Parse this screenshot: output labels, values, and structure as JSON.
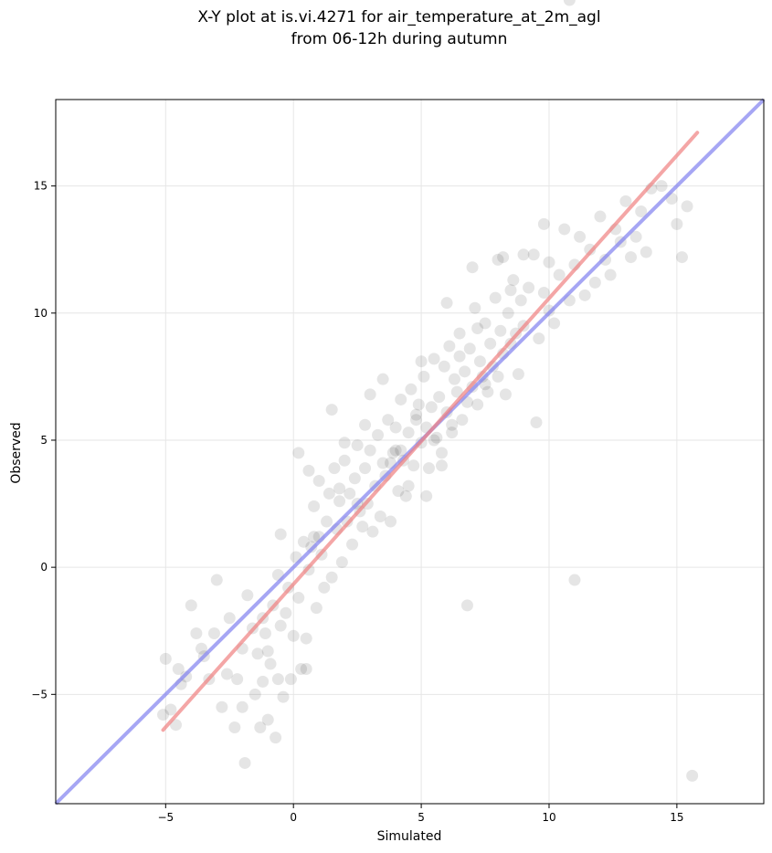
{
  "chart_data": {
    "type": "scatter",
    "title_lines": [
      "X-Y plot at is.vi.4271 for air_temperature_at_2m_agl",
      "from 06-12h during autumn"
    ],
    "xlabel": "Simulated",
    "ylabel": "Observed",
    "xlim": [
      -9.3,
      18.4
    ],
    "ylim": [
      -9.3,
      18.4
    ],
    "xticks": [
      -5,
      0,
      5,
      10,
      15
    ],
    "yticks": [
      -5,
      0,
      5,
      10,
      15
    ],
    "xtick_labels": [
      "−5",
      "0",
      "5",
      "10",
      "15"
    ],
    "ytick_labels": [
      "−5",
      "0",
      "5",
      "10",
      "15"
    ],
    "grid": true,
    "point_color": "#000000",
    "point_opacity": 0.1,
    "points_x": [
      -5.1,
      -5.0,
      -4.8,
      -4.6,
      -4.5,
      -4.4,
      -4.2,
      -4.0,
      -3.8,
      -3.6,
      -3.5,
      -3.3,
      -3.1,
      -3.0,
      -2.8,
      -2.6,
      -2.5,
      -2.3,
      -2.2,
      -2.0,
      -1.9,
      -1.8,
      -1.6,
      -1.5,
      -1.4,
      -1.3,
      -1.2,
      -1.1,
      -1.0,
      -0.9,
      -0.8,
      -0.7,
      -0.6,
      -0.5,
      -0.4,
      -0.3,
      -0.2,
      -0.1,
      0.0,
      0.1,
      0.2,
      0.3,
      0.4,
      0.5,
      0.6,
      0.7,
      0.8,
      0.9,
      1.0,
      1.1,
      1.2,
      1.3,
      1.4,
      1.5,
      1.6,
      1.7,
      1.8,
      1.9,
      2.0,
      2.1,
      2.2,
      2.3,
      2.4,
      2.5,
      2.6,
      2.7,
      2.8,
      2.9,
      3.0,
      3.1,
      3.2,
      3.3,
      3.4,
      3.5,
      3.6,
      3.7,
      3.8,
      3.9,
      4.0,
      4.1,
      4.2,
      4.3,
      4.4,
      4.5,
      4.6,
      4.7,
      4.8,
      4.9,
      5.0,
      5.1,
      5.2,
      5.3,
      5.4,
      5.5,
      5.6,
      5.7,
      5.8,
      5.9,
      6.0,
      6.1,
      6.2,
      6.3,
      6.4,
      6.5,
      6.6,
      6.7,
      6.8,
      6.9,
      7.0,
      7.1,
      7.2,
      7.3,
      7.4,
      7.5,
      7.6,
      7.7,
      7.8,
      7.9,
      8.0,
      8.1,
      8.2,
      8.3,
      8.4,
      8.5,
      8.6,
      8.7,
      8.8,
      8.9,
      9.0,
      9.2,
      9.4,
      9.6,
      9.8,
      10.0,
      10.2,
      10.4,
      10.6,
      10.8,
      11.0,
      11.2,
      11.4,
      11.6,
      11.8,
      12.0,
      12.2,
      12.4,
      12.6,
      12.8,
      13.0,
      13.2,
      13.4,
      13.6,
      13.8,
      14.0,
      14.4,
      14.8,
      15.0,
      15.2,
      15.4,
      15.6,
      -1.0,
      -0.5,
      0.5,
      1.0,
      2.0,
      3.0,
      4.0,
      5.0,
      6.0,
      7.0,
      8.0,
      9.0,
      10.0,
      11.0,
      -2.0,
      -1.2,
      0.2,
      1.5,
      2.5,
      3.5,
      4.5,
      5.5,
      6.5,
      7.5,
      8.5,
      9.5,
      0.8,
      1.8,
      2.8,
      3.8,
      4.8,
      5.8,
      6.8,
      -0.6,
      0.6,
      4.2,
      5.2,
      6.2,
      7.2,
      8.2,
      9.8,
      10.8
    ],
    "points_y": [
      -5.8,
      -3.6,
      -5.6,
      -6.2,
      -4.0,
      -4.6,
      -4.3,
      -1.5,
      -2.6,
      -3.2,
      -3.5,
      -4.4,
      -2.6,
      -0.5,
      -5.5,
      -4.2,
      -2.0,
      -6.3,
      -4.4,
      -3.2,
      -7.7,
      -1.1,
      -2.4,
      -5.0,
      -3.4,
      -6.3,
      -4.5,
      -2.6,
      -6.0,
      -3.8,
      -1.5,
      -6.7,
      -0.3,
      -2.3,
      -5.1,
      -1.8,
      -0.8,
      -4.4,
      -2.7,
      0.4,
      -1.2,
      -4.0,
      1.0,
      -2.8,
      -0.1,
      0.8,
      2.4,
      -1.6,
      3.4,
      0.5,
      -0.8,
      1.8,
      2.9,
      -0.4,
      3.9,
      1.5,
      2.6,
      0.2,
      4.2,
      1.8,
      2.9,
      0.9,
      3.5,
      4.8,
      2.2,
      1.6,
      3.9,
      2.5,
      4.6,
      1.4,
      3.2,
      5.2,
      2.0,
      4.1,
      3.6,
      5.8,
      1.8,
      4.5,
      5.5,
      3.0,
      6.6,
      4.2,
      2.8,
      5.3,
      7.0,
      4.0,
      5.8,
      6.4,
      4.9,
      7.5,
      5.5,
      3.9,
      6.3,
      8.2,
      5.1,
      6.7,
      4.5,
      7.9,
      6.1,
      8.7,
      5.3,
      7.4,
      6.9,
      9.2,
      5.8,
      7.7,
      6.5,
      8.6,
      7.1,
      10.2,
      6.4,
      8.1,
      7.5,
      9.6,
      6.9,
      8.8,
      7.9,
      10.6,
      7.5,
      9.3,
      8.4,
      6.8,
      10.0,
      8.8,
      11.3,
      9.2,
      7.6,
      10.5,
      9.5,
      11.0,
      12.3,
      9.0,
      10.8,
      12.0,
      9.6,
      11.5,
      13.3,
      10.5,
      11.9,
      13.0,
      10.7,
      12.5,
      11.2,
      13.8,
      12.1,
      11.5,
      13.3,
      12.8,
      14.4,
      12.2,
      13.0,
      14.0,
      12.4,
      14.9,
      15.0,
      14.5,
      13.5,
      12.2,
      14.2,
      -8.2,
      -3.3,
      1.3,
      -4.0,
      1.2,
      4.9,
      6.8,
      4.6,
      8.1,
      10.4,
      11.8,
      12.1,
      12.3,
      10.1,
      -0.5,
      -5.5,
      -2.0,
      4.5,
      6.2,
      2.5,
      7.4,
      3.2,
      5.0,
      8.3,
      7.2,
      10.9,
      5.7,
      1.2,
      3.1,
      5.6,
      4.1,
      6.0,
      4.0,
      -1.5,
      -4.4,
      3.8,
      4.6,
      2.8,
      5.6,
      9.4,
      12.2,
      13.5
    ],
    "fit_line": {
      "x": [
        -5.1,
        15.8
      ],
      "y": [
        -6.4,
        17.1
      ],
      "color": "#f08080"
    },
    "identity_line": {
      "x": [
        -9.3,
        18.4
      ],
      "y": [
        -9.3,
        18.4
      ],
      "color": "#8080f0"
    }
  }
}
